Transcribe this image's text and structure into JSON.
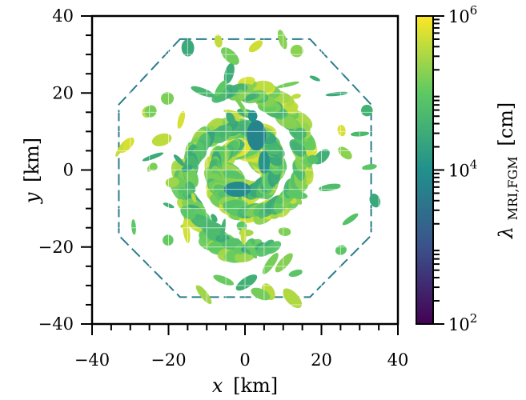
{
  "chart_data": {
    "type": "heatmap",
    "title": "",
    "xlabel": {
      "symbol": "x",
      "unit": "[km]"
    },
    "ylabel": {
      "symbol": "y",
      "unit": "[km]"
    },
    "xlim": [
      -40,
      40
    ],
    "ylim": [
      -40,
      40
    ],
    "x_ticks": [
      -40,
      -20,
      0,
      20,
      40
    ],
    "x_tick_labels": [
      "−40",
      "−20",
      "0",
      "20",
      "40"
    ],
    "y_ticks": [
      -40,
      -20,
      0,
      20,
      40
    ],
    "y_tick_labels": [
      "−40",
      "−20",
      "0",
      "20",
      "40"
    ],
    "colorbar": {
      "label": {
        "symbol": "λ",
        "subscript": "MRI,FGM",
        "unit": "[cm]"
      },
      "scale": "log",
      "range": [
        100,
        1000000
      ],
      "ticks": [
        {
          "value": 100,
          "base": "10",
          "exp": "2"
        },
        {
          "value": 10000,
          "base": "10",
          "exp": "4"
        },
        {
          "value": 1000000,
          "base": "10",
          "exp": "6"
        }
      ],
      "colormap": "viridis",
      "colormap_stops": [
        "#440154",
        "#3b528b",
        "#21908c",
        "#5dc963",
        "#fde725"
      ]
    },
    "spiral_arms": [
      {
        "theta0_deg": 20,
        "r0_km": 4,
        "pitch": 0.23,
        "sweep_deg": 430,
        "width_km": 3.2,
        "level": 0.86
      },
      {
        "theta0_deg": 200,
        "r0_km": 4,
        "pitch": 0.23,
        "sweep_deg": 430,
        "width_km": 3.2,
        "level": 0.82
      },
      {
        "theta0_deg": 110,
        "r0_km": 6,
        "pitch": 0.2,
        "sweep_deg": 360,
        "width_km": 2.4,
        "level": 0.72
      },
      {
        "theta0_deg": 290,
        "r0_km": 6,
        "pitch": 0.2,
        "sweep_deg": 360,
        "width_km": 2.4,
        "level": 0.68
      }
    ],
    "inner_patches": [
      {
        "x_km": 3,
        "y_km": 9,
        "rx_km": 2.5,
        "ry_km": 4,
        "level": 0.45
      },
      {
        "x_km": -2,
        "y_km": -5,
        "rx_km": 3.5,
        "ry_km": 2,
        "level": 0.48
      },
      {
        "x_km": 5,
        "y_km": 2,
        "rx_km": 1.5,
        "ry_km": 3,
        "level": 0.52
      },
      {
        "x_km": 2,
        "y_km": 14,
        "rx_km": 1.2,
        "ry_km": 1.5,
        "level": 0.5
      },
      {
        "x_km": -7,
        "y_km": 8,
        "rx_km": 1,
        "ry_km": 0.8,
        "level": 0.7
      },
      {
        "x_km": 9,
        "y_km": -8,
        "rx_km": 1,
        "ry_km": 1,
        "level": 0.72
      }
    ],
    "boundary_outline": {
      "vertices_km": [
        [
          -17,
          34
        ],
        [
          17,
          34
        ],
        [
          33,
          17
        ],
        [
          33,
          -17
        ],
        [
          17,
          -33
        ],
        [
          -17,
          -33
        ],
        [
          -33,
          -17
        ],
        [
          -33,
          17
        ]
      ],
      "level": 0.42
    }
  }
}
